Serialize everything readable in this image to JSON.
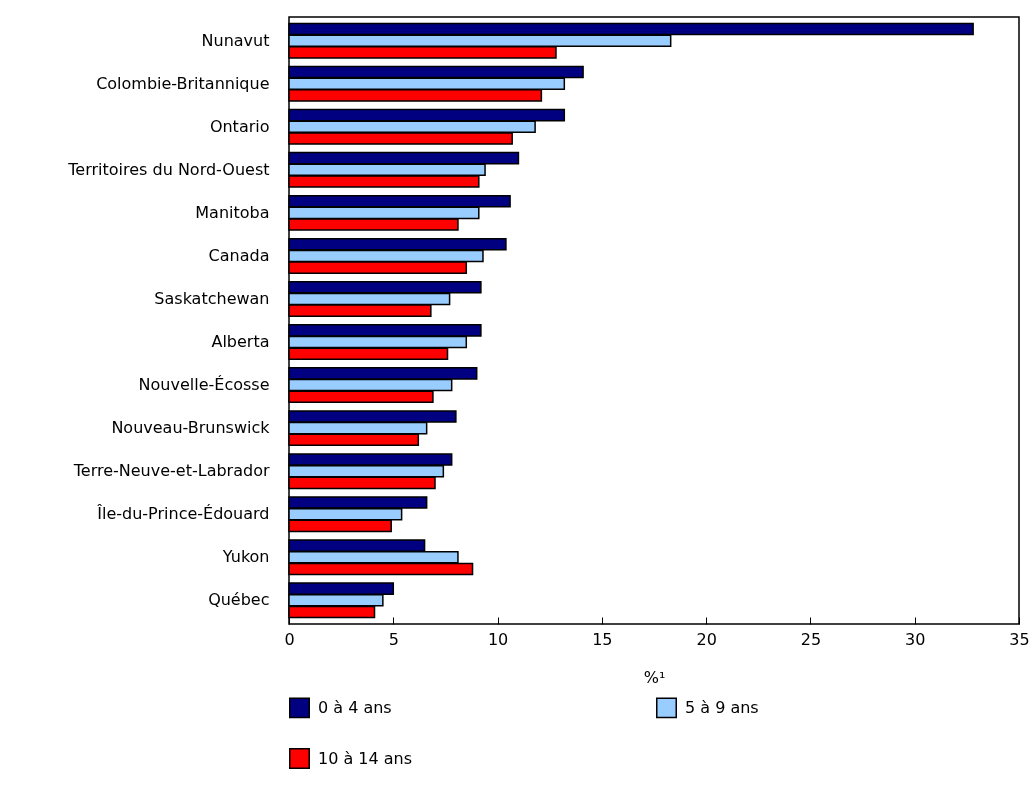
{
  "chart_data": {
    "type": "bar",
    "orientation": "horizontal",
    "xlabel": "%¹",
    "categories": [
      "Nunavut",
      "Colombie-Britannique",
      "Ontario",
      "Territoires du Nord-Ouest",
      "Manitoba",
      "Canada",
      "Saskatchewan",
      "Alberta",
      "Nouvelle-Écosse",
      "Nouveau-Brunswick",
      "Terre-Neuve-et-Labrador",
      "Île-du-Prince-Édouard",
      "Yukon",
      "Québec"
    ],
    "series": [
      {
        "name": "0 à 4 ans",
        "color": "#000080",
        "values": [
          32.8,
          14.1,
          13.2,
          11.0,
          10.6,
          10.4,
          9.2,
          9.2,
          9.0,
          8.0,
          7.8,
          6.6,
          6.5,
          5.0
        ]
      },
      {
        "name": "5 à 9 ans",
        "color": "#99ccff",
        "values": [
          18.3,
          13.2,
          11.8,
          9.4,
          9.1,
          9.3,
          7.7,
          8.5,
          7.8,
          6.6,
          7.4,
          5.4,
          8.1,
          4.5
        ]
      },
      {
        "name": "10 à 14 ans",
        "color": "#ff0000",
        "values": [
          12.8,
          12.1,
          10.7,
          9.1,
          8.1,
          8.5,
          6.8,
          7.6,
          6.9,
          6.2,
          7.0,
          4.9,
          8.8,
          4.1
        ]
      }
    ],
    "xlim": [
      0,
      35
    ],
    "xticks": [
      0,
      5,
      10,
      15,
      20,
      25,
      30,
      35
    ],
    "grid": false,
    "legend": "bottom"
  }
}
